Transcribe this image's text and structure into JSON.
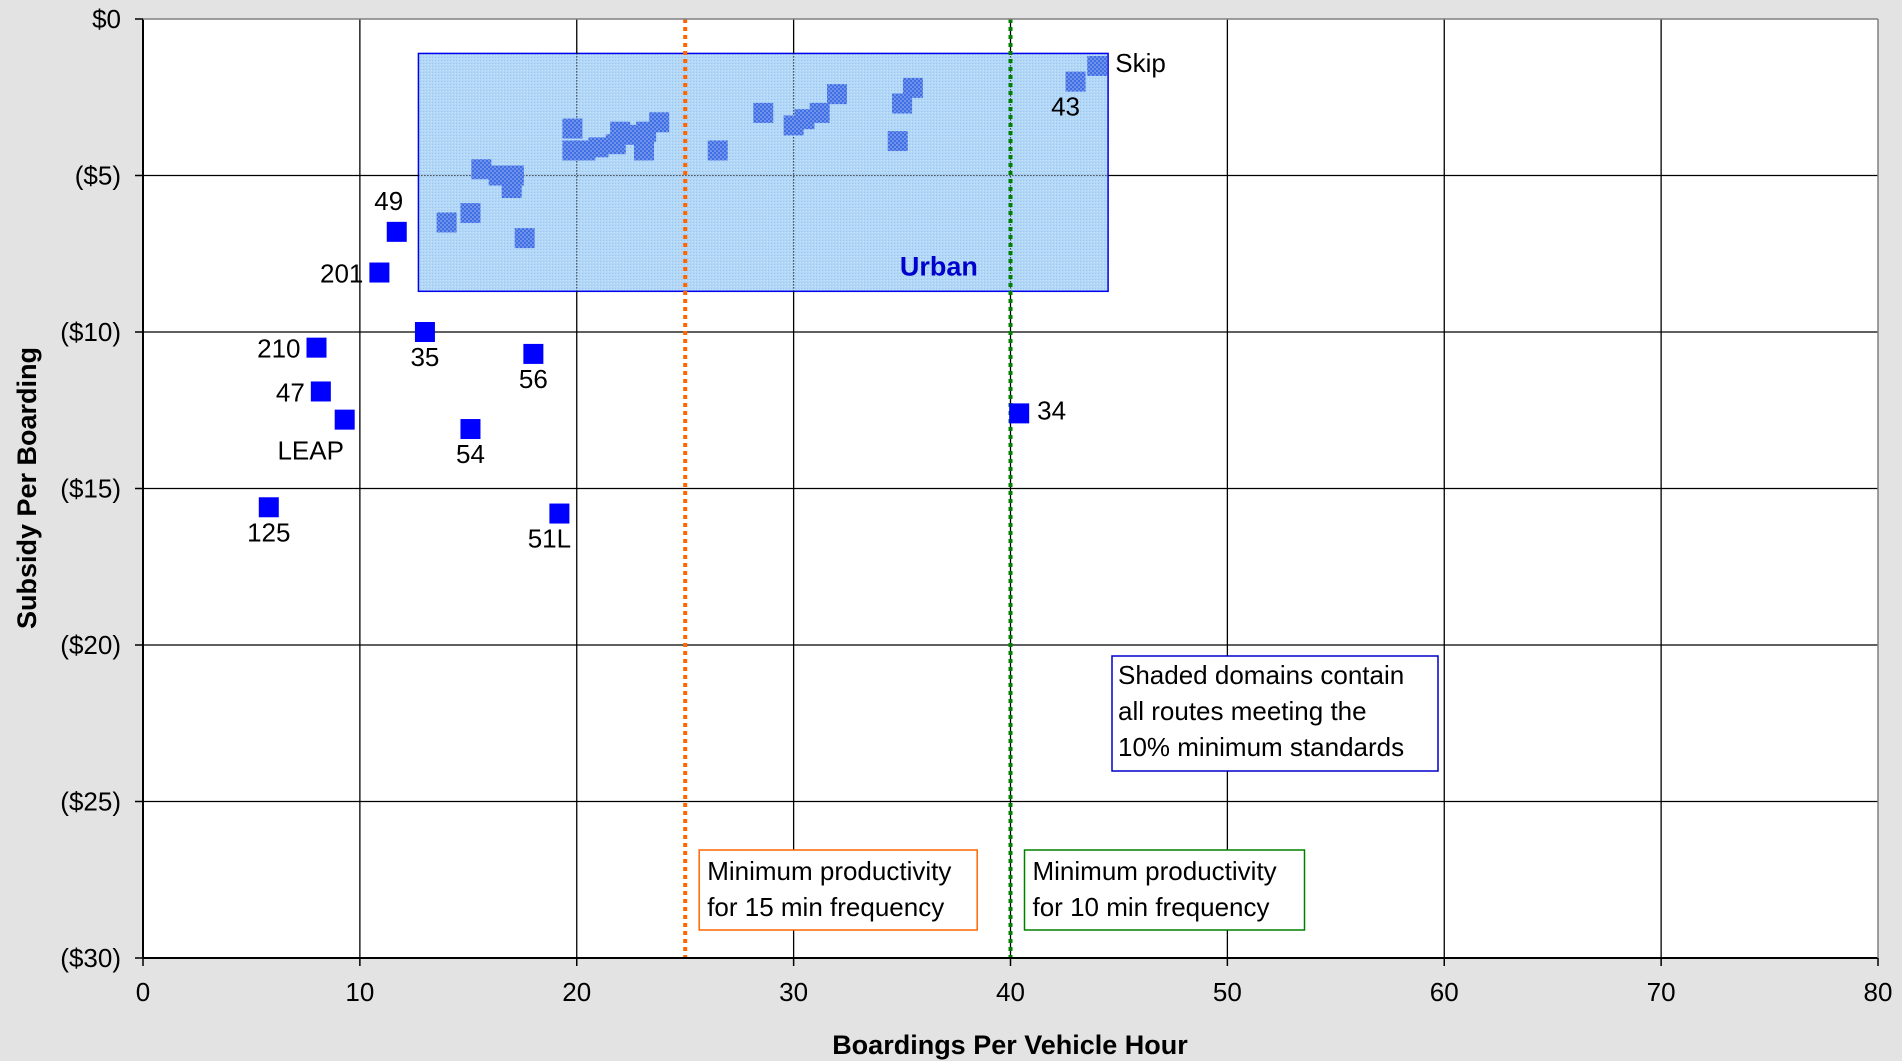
{
  "chart_data": {
    "type": "scatter",
    "xlabel": "Boardings Per Vehicle Hour",
    "ylabel": "Subsidy Per Boarding",
    "xlim": [
      0,
      80
    ],
    "ylim": [
      -30,
      0
    ],
    "x_ticks": [
      {
        "value": 0,
        "label": "0"
      },
      {
        "value": 10,
        "label": "10"
      },
      {
        "value": 20,
        "label": "20"
      },
      {
        "value": 30,
        "label": "30"
      },
      {
        "value": 40,
        "label": "40"
      },
      {
        "value": 50,
        "label": "50"
      },
      {
        "value": 60,
        "label": "60"
      },
      {
        "value": 70,
        "label": "70"
      },
      {
        "value": 80,
        "label": "80"
      }
    ],
    "y_ticks": [
      {
        "value": 0,
        "label": "$0"
      },
      {
        "value": -5,
        "label": "($5)"
      },
      {
        "value": -10,
        "label": "($10)"
      },
      {
        "value": -15,
        "label": "($15)"
      },
      {
        "value": -20,
        "label": "($20)"
      },
      {
        "value": -25,
        "label": "($25)"
      },
      {
        "value": -30,
        "label": "($30)"
      }
    ],
    "grid": true,
    "marker_color": "#0000ff",
    "urban_marker_color": "#3a6fe0",
    "points": [
      {
        "x": 44.0,
        "y": -1.5,
        "label": "Skip",
        "urban": true,
        "lpos": "right"
      },
      {
        "x": 43.0,
        "y": -2.0,
        "label": "43",
        "urban": true,
        "lpos": "below-left"
      },
      {
        "x": 35.5,
        "y": -2.2,
        "label": "",
        "urban": true
      },
      {
        "x": 35.0,
        "y": -2.7,
        "label": "",
        "urban": true
      },
      {
        "x": 34.8,
        "y": -3.9,
        "label": "",
        "urban": true
      },
      {
        "x": 32.0,
        "y": -2.4,
        "label": "",
        "urban": true
      },
      {
        "x": 31.2,
        "y": -3.0,
        "label": "",
        "urban": true
      },
      {
        "x": 30.5,
        "y": -3.2,
        "label": "",
        "urban": true
      },
      {
        "x": 30.0,
        "y": -3.4,
        "label": "",
        "urban": true
      },
      {
        "x": 28.6,
        "y": -3.0,
        "label": "",
        "urban": true
      },
      {
        "x": 26.5,
        "y": -4.2,
        "label": "",
        "urban": true
      },
      {
        "x": 23.8,
        "y": -3.3,
        "label": "",
        "urban": true
      },
      {
        "x": 23.2,
        "y": -3.6,
        "label": "",
        "urban": true
      },
      {
        "x": 23.1,
        "y": -4.2,
        "label": "",
        "urban": true
      },
      {
        "x": 22.6,
        "y": -3.7,
        "label": "",
        "urban": true
      },
      {
        "x": 22.0,
        "y": -3.6,
        "label": "",
        "urban": true
      },
      {
        "x": 21.8,
        "y": -4.0,
        "label": "",
        "urban": true
      },
      {
        "x": 21.0,
        "y": -4.1,
        "label": "",
        "urban": true
      },
      {
        "x": 20.4,
        "y": -4.2,
        "label": "",
        "urban": true
      },
      {
        "x": 19.8,
        "y": -3.5,
        "label": "",
        "urban": true
      },
      {
        "x": 19.8,
        "y": -4.2,
        "label": "",
        "urban": true
      },
      {
        "x": 17.6,
        "y": -7.0,
        "label": "",
        "urban": true
      },
      {
        "x": 17.1,
        "y": -5.0,
        "label": "",
        "urban": true
      },
      {
        "x": 17.0,
        "y": -5.4,
        "label": "",
        "urban": true
      },
      {
        "x": 16.4,
        "y": -5.0,
        "label": "",
        "urban": true
      },
      {
        "x": 15.6,
        "y": -4.8,
        "label": "",
        "urban": true
      },
      {
        "x": 15.1,
        "y": -6.2,
        "label": "",
        "urban": true
      },
      {
        "x": 14.0,
        "y": -6.5,
        "label": "",
        "urban": true
      },
      {
        "x": 11.7,
        "y": -6.8,
        "label": "49",
        "urban": false,
        "lpos": "above-left"
      },
      {
        "x": 10.9,
        "y": -8.1,
        "label": "201",
        "urban": false,
        "lpos": "left"
      },
      {
        "x": 13.0,
        "y": -10.0,
        "label": "35",
        "urban": false,
        "lpos": "below"
      },
      {
        "x": 8.0,
        "y": -10.5,
        "label": "210",
        "urban": false,
        "lpos": "left"
      },
      {
        "x": 18.0,
        "y": -10.7,
        "label": "56",
        "urban": false,
        "lpos": "below"
      },
      {
        "x": 8.2,
        "y": -11.9,
        "label": "47",
        "urban": false,
        "lpos": "left"
      },
      {
        "x": 9.3,
        "y": -12.8,
        "label": "LEAP",
        "urban": false,
        "lpos": "below-left"
      },
      {
        "x": 15.1,
        "y": -13.1,
        "label": "54",
        "urban": false,
        "lpos": "below"
      },
      {
        "x": 40.4,
        "y": -12.6,
        "label": "34",
        "urban": false,
        "lpos": "right"
      },
      {
        "x": 5.8,
        "y": -15.6,
        "label": "125",
        "urban": false,
        "lpos": "below"
      },
      {
        "x": 19.2,
        "y": -15.8,
        "label": "51L",
        "urban": false,
        "lpos": "below-left"
      }
    ],
    "urban_region": {
      "x0": 12.7,
      "x1": 44.5,
      "y0": -1.1,
      "y1": -8.7,
      "label": "Urban",
      "fill": "#a9d3f5",
      "stroke": "#0000ee"
    },
    "reference_lines": [
      {
        "x": 25,
        "color": "#ff6600",
        "note": [
          "Minimum productivity",
          "for 15 min frequency"
        ]
      },
      {
        "x": 40,
        "color": "#008000",
        "note": [
          "Minimum productivity",
          "for 10 min frequency"
        ]
      }
    ],
    "annotation": [
      "Shaded domains contain",
      "all routes meeting the",
      "10% minimum standards"
    ],
    "annotation_border": "#0000cc"
  }
}
